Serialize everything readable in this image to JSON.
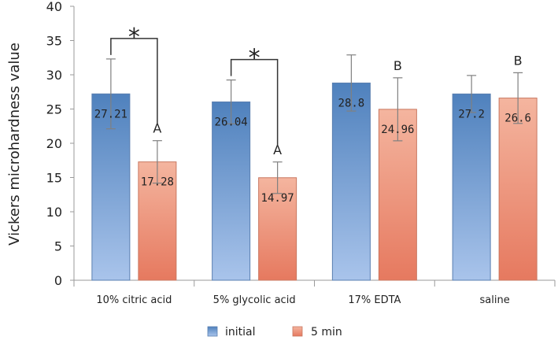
{
  "chart_data": {
    "type": "bar",
    "title": "",
    "xlabel": "",
    "ylabel": "Vickers microhardness value",
    "ylim": [
      0,
      40
    ],
    "yticks": [
      0,
      5,
      10,
      15,
      20,
      25,
      30,
      35,
      40
    ],
    "grid": false,
    "legend_position": "bottom",
    "categories": [
      "10% citric acid",
      "5% glycolic acid",
      "17% EDTA",
      "saline"
    ],
    "series": [
      {
        "name": "initial",
        "color_top": "#4f81bd",
        "color_bottom": "#a9c4eb",
        "values": [
          27.21,
          26.04,
          28.8,
          27.2
        ],
        "labels": [
          "27.21",
          "26.04",
          "28.8",
          "27.2"
        ],
        "error": [
          5.1,
          3.2,
          4.1,
          2.7
        ]
      },
      {
        "name": "5 min",
        "color_top": "#f4b59f",
        "color_bottom": "#e6795f",
        "values": [
          17.28,
          14.97,
          24.96,
          26.6
        ],
        "labels": [
          "17.28",
          "14.97",
          "24.96",
          "26.6"
        ],
        "error": [
          3.1,
          2.3,
          4.6,
          3.7
        ]
      }
    ],
    "group_letters": [
      "A",
      "A",
      "B",
      "B"
    ],
    "significance": [
      {
        "category_index": 0,
        "marker": "*"
      },
      {
        "category_index": 1,
        "marker": "*"
      }
    ]
  }
}
